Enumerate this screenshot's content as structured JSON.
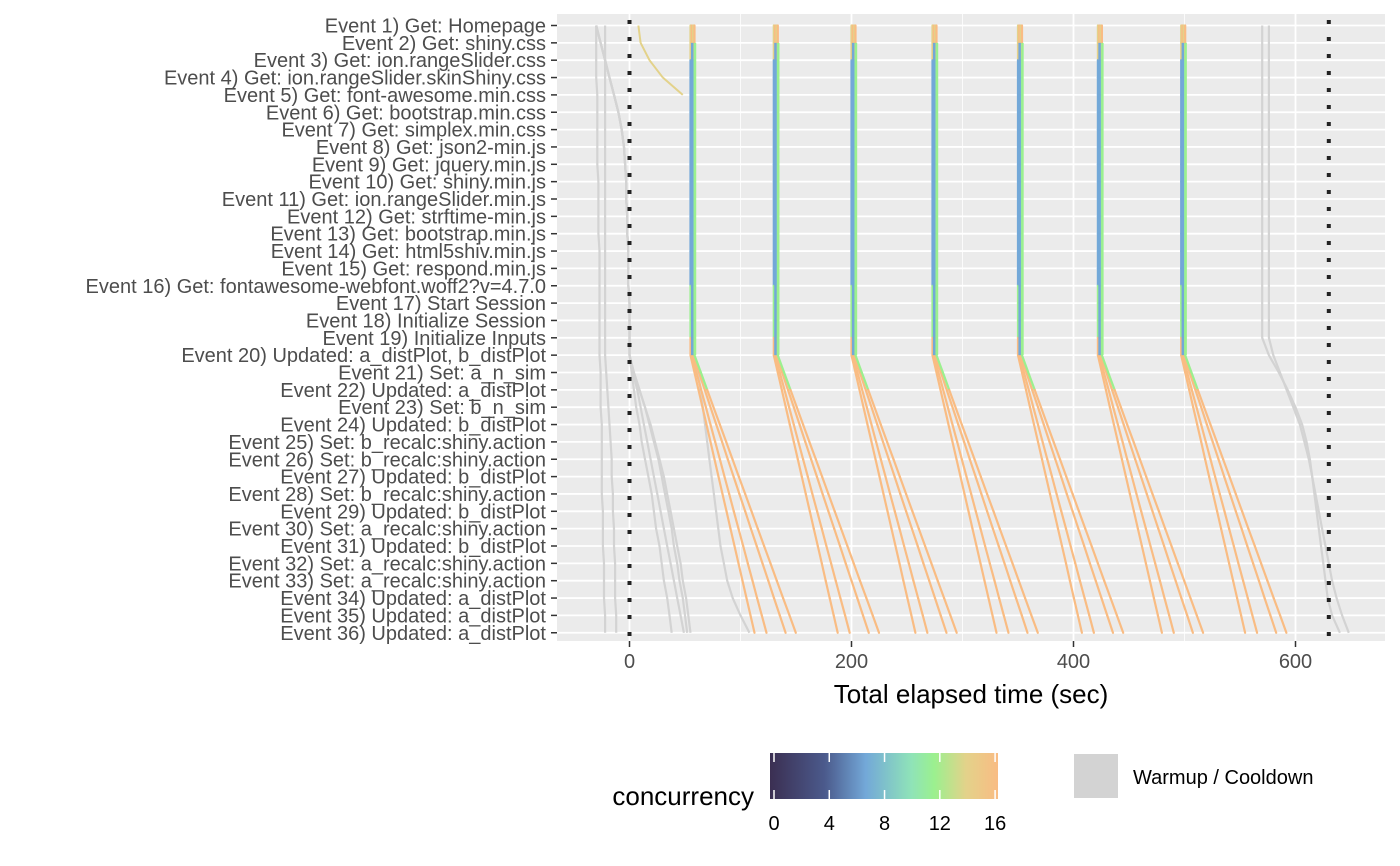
{
  "chart_data": {
    "type": "line",
    "title": "",
    "xlabel": "Total elapsed time (sec)",
    "ylabel": "",
    "xlim": [
      -64,
      678
    ],
    "x_ticks": [
      0,
      200,
      400,
      600
    ],
    "grid": true,
    "y_reversed": true,
    "categories": [
      "Event 1) Get: Homepage",
      "Event 2) Get: shiny.css",
      "Event 3) Get: ion.rangeSlider.css",
      "Event 4) Get: ion.rangeSlider.skinShiny.css",
      "Event 5) Get: font-awesome.min.css",
      "Event 6) Get: bootstrap.min.css",
      "Event 7) Get: simplex.min.css",
      "Event 8) Get: json2-min.js",
      "Event 9) Get: jquery.min.js",
      "Event 10) Get: shiny.min.js",
      "Event 11) Get: ion.rangeSlider.min.js",
      "Event 12) Get: strftime-min.js",
      "Event 13) Get: bootstrap.min.js",
      "Event 14) Get: html5shiv.min.js",
      "Event 15) Get: respond.min.js",
      "Event 16) Get: fontawesome-webfont.woff2?v=4.7.0",
      "Event 17) Start Session",
      "Event 18) Initialize Session",
      "Event 19) Initialize Inputs",
      "Event 20) Updated: a_distPlot, b_distPlot",
      "Event 21) Set: a_n_sim",
      "Event 22) Updated: a_distPlot",
      "Event 23) Set: b_n_sim",
      "Event 24) Updated: b_distPlot",
      "Event 25) Set: b_recalc:shiny.action",
      "Event 26) Set: b_recalc:shiny.action",
      "Event 27) Updated: b_distPlot",
      "Event 28) Set: b_recalc:shiny.action",
      "Event 29) Updated: b_distPlot",
      "Event 30) Set: a_recalc:shiny.action",
      "Event 31) Updated: b_distPlot",
      "Event 32) Set: a_recalc:shiny.action",
      "Event 33) Set: a_recalc:shiny.action",
      "Event 34) Updated: a_distPlot",
      "Event 35) Updated: a_distPlot",
      "Event 36) Updated: a_distPlot"
    ],
    "vlines": [
      0,
      630
    ],
    "warmup_cooldown": {
      "label": "Warmup / Cooldown",
      "color": "#d3d3d3",
      "series": [
        {
          "x": [
            -30,
            -30,
            -30,
            -30,
            -29,
            -29,
            -29,
            -29,
            -29,
            -28,
            -28,
            -28,
            -28,
            -27,
            -27,
            -27,
            -27,
            -27,
            -27,
            -27,
            -26,
            -26,
            -26,
            -25,
            -25,
            -25,
            -25,
            -25,
            -24,
            -24,
            -24,
            -23,
            -23,
            -23,
            -22,
            -22
          ]
        },
        {
          "x": [
            -22,
            -22,
            -22,
            -22,
            -22,
            -22,
            -22,
            -22,
            -22,
            -22,
            -22,
            -22,
            -22,
            -22,
            -22,
            -22,
            -22,
            -22,
            -22,
            -22,
            -21,
            -20,
            -19,
            -18,
            -17,
            -16,
            -16,
            -15,
            -15,
            -14,
            -14,
            -13,
            -13,
            -13,
            -12,
            -12
          ]
        },
        {
          "x": [
            -30,
            -26,
            -22,
            -18,
            -14,
            -10,
            -7,
            -5,
            -4,
            -3,
            -3,
            -2,
            -2,
            -1,
            -1,
            -1,
            0,
            0,
            0,
            0,
            2,
            4,
            6,
            9,
            11,
            14,
            17,
            20,
            22,
            24,
            27,
            29,
            31,
            34,
            36,
            38
          ]
        },
        {
          "x": [
            -30,
            -26,
            -22,
            -18,
            -14,
            -10,
            -7,
            -5,
            -4,
            -3,
            -3,
            -2,
            -2,
            -1,
            -1,
            -1,
            0,
            0,
            0,
            0,
            3,
            7,
            10,
            13,
            16,
            19,
            22,
            25,
            28,
            31,
            34,
            37,
            40,
            43,
            46,
            49
          ]
        },
        {
          "x": [
            -30,
            -26,
            -22,
            -18,
            -14,
            -10,
            -7,
            -5,
            -4,
            -3,
            -3,
            -2,
            -2,
            -1,
            -1,
            -1,
            0,
            0,
            0,
            0,
            4,
            9,
            14,
            18,
            22,
            26,
            29,
            32,
            35,
            38,
            40,
            43,
            45,
            48,
            50,
            52
          ]
        },
        {
          "x": [
            -30,
            -26,
            -22,
            -18,
            -14,
            -10,
            -7,
            -5,
            -4,
            -3,
            -3,
            -2,
            -2,
            -1,
            -1,
            -1,
            0,
            0,
            0,
            0,
            4,
            9,
            14,
            19,
            23,
            27,
            31,
            34,
            37,
            40,
            43,
            46,
            48,
            51,
            53,
            55
          ]
        },
        {
          "x": [
            58,
            58,
            58,
            58,
            58,
            58,
            58,
            58,
            58,
            58,
            58,
            58,
            58,
            58,
            58,
            58,
            58,
            58,
            58,
            58,
            62,
            64,
            66,
            68,
            70,
            72,
            74,
            76,
            78,
            80,
            82,
            85,
            88,
            93,
            100,
            108
          ]
        },
        {
          "x": [
            570,
            570,
            570,
            570,
            570,
            570,
            570,
            570,
            570,
            570,
            570,
            570,
            570,
            570,
            570,
            570,
            570,
            570,
            570,
            576,
            585,
            593,
            600,
            606,
            610,
            613,
            615,
            617,
            619,
            621,
            623,
            625,
            627,
            629,
            633,
            640
          ]
        },
        {
          "x": [
            576,
            576,
            576,
            576,
            576,
            576,
            576,
            576,
            576,
            576,
            576,
            576,
            576,
            576,
            576,
            576,
            576,
            576,
            576,
            580,
            586,
            592,
            598,
            604,
            608,
            612,
            615,
            618,
            621,
            624,
            627,
            630,
            633,
            637,
            642,
            648
          ]
        }
      ]
    },
    "concurrency_legend": {
      "title": "concurrency",
      "ticks": [
        0,
        4,
        8,
        12,
        16
      ],
      "range": [
        0,
        16.5
      ],
      "colors": [
        "#3b2f52",
        "#4b5a8c",
        "#73a8d8",
        "#8fe3b8",
        "#9bf08f",
        "#e3d28a",
        "#f9bc83"
      ]
    },
    "series_groups": [
      {
        "start": 55,
        "end": 62
      },
      {
        "start": 130,
        "end": 135
      },
      {
        "start": 200,
        "end": 207
      },
      {
        "start": 273,
        "end": 280
      },
      {
        "start": 350,
        "end": 355
      },
      {
        "start": 422,
        "end": 428
      },
      {
        "start": 497,
        "end": 504
      }
    ]
  }
}
